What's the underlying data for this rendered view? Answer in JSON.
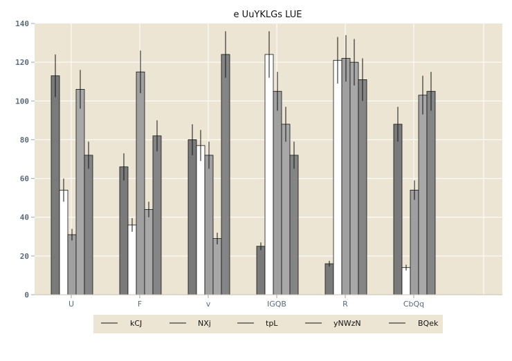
{
  "chart_data": {
    "type": "bar",
    "title": "e UuYKLGs LUE",
    "xlabel": "",
    "ylabel": "",
    "ylim": [
      0,
      140
    ],
    "yticks": [
      0,
      20,
      40,
      60,
      80,
      100,
      120,
      140
    ],
    "categories": [
      "U",
      "F",
      "v",
      "IGQB",
      "R",
      "CbQq"
    ],
    "grid": true,
    "legend_position": "bottom",
    "background_color": "#ede5d3",
    "series": [
      {
        "name": "kCJ",
        "color": "#7a7a7a",
        "values": [
          113,
          66,
          80,
          25,
          16,
          88
        ],
        "errors": [
          11,
          7,
          8,
          2,
          1.5,
          9
        ]
      },
      {
        "name": "NXj",
        "color": "#ffffff",
        "values": [
          54,
          36,
          77,
          124,
          121,
          14
        ],
        "errors": [
          6,
          3.5,
          8,
          12,
          12,
          1.5
        ]
      },
      {
        "name": "tpL",
        "color": "#a0a0a0",
        "values": [
          31,
          115,
          72,
          105,
          122,
          54
        ],
        "errors": [
          3,
          11,
          7,
          10,
          12,
          5
        ]
      },
      {
        "name": "yNWzN",
        "color": "#a8a8a8",
        "values": [
          106,
          44,
          29,
          88,
          120,
          103
        ],
        "errors": [
          10,
          4,
          3,
          9,
          12,
          10
        ]
      },
      {
        "name": "BQek",
        "color": "#858585",
        "values": [
          72,
          82,
          124,
          72,
          111,
          105
        ],
        "errors": [
          7,
          8,
          12,
          7,
          11,
          10
        ]
      }
    ]
  }
}
